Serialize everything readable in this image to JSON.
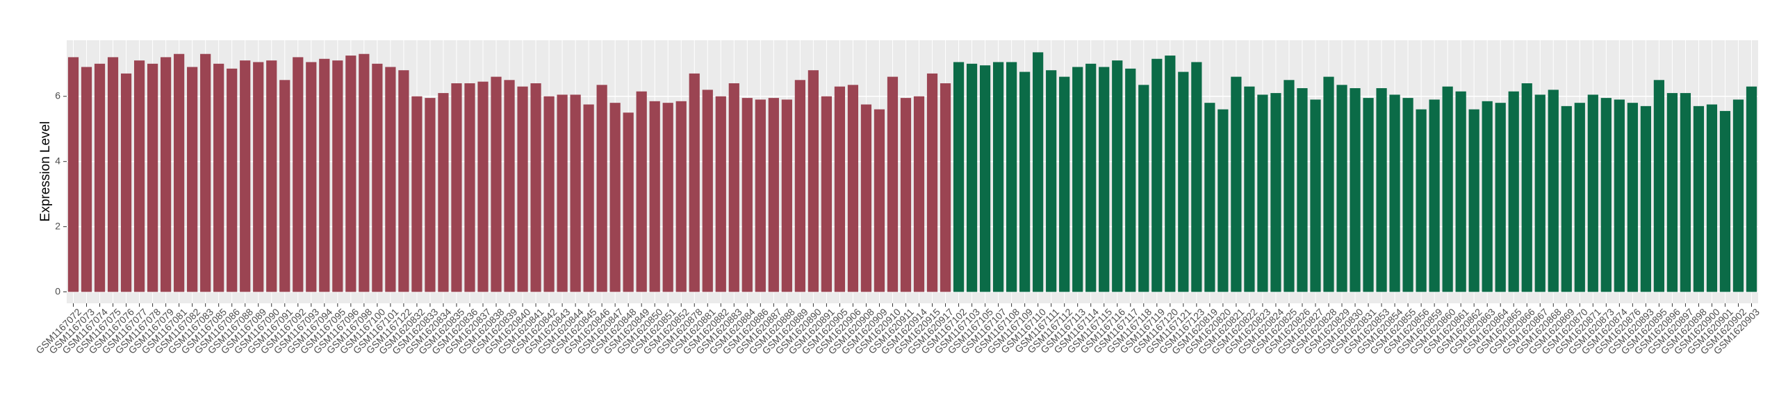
{
  "chart_data": {
    "type": "bar",
    "y_label": "Expression Level",
    "ylim": [
      -0.35,
      7.72
    ],
    "yticks": [
      0,
      2,
      4,
      6
    ],
    "grid": true,
    "series": [
      {
        "color": "#9b4452",
        "categories": [
          "GSM1167072",
          "GSM1167073",
          "GSM1167074",
          "GSM1167075",
          "GSM1167076",
          "GSM1167077",
          "GSM1167078",
          "GSM1167079",
          "GSM1167081",
          "GSM1167082",
          "GSM1167083",
          "GSM1167085",
          "GSM1167086",
          "GSM1167088",
          "GSM1167089",
          "GSM1167090",
          "GSM1167091",
          "GSM1167092",
          "GSM1167093",
          "GSM1167094",
          "GSM1167095",
          "GSM1167096",
          "GSM1167098",
          "GSM1167100",
          "GSM1167101",
          "GSM1167122",
          "GSM1620832",
          "GSM1620833",
          "GSM1620834",
          "GSM1620835",
          "GSM1620836",
          "GSM1620837",
          "GSM1620838",
          "GSM1620839",
          "GSM1620840",
          "GSM1620841",
          "GSM1620842",
          "GSM1620843",
          "GSM1620844",
          "GSM1620845",
          "GSM1620846",
          "GSM1620847",
          "GSM1620848",
          "GSM1620849",
          "GSM1620850",
          "GSM1620851",
          "GSM1620852",
          "GSM1620878",
          "GSM1620881",
          "GSM1620882",
          "GSM1620883",
          "GSM1620884",
          "GSM1620886",
          "GSM1620887",
          "GSM1620888",
          "GSM1620889",
          "GSM1620890",
          "GSM1620891",
          "GSM1620905",
          "GSM1620906",
          "GSM1620908",
          "GSM1620909",
          "GSM1620910",
          "GSM1620911",
          "GSM1620914",
          "GSM1620915",
          "GSM1620917"
        ],
        "values": [
          7.2,
          6.9,
          7.0,
          7.2,
          6.7,
          7.1,
          7.0,
          7.2,
          7.3,
          6.9,
          7.3,
          7.0,
          6.85,
          7.1,
          7.05,
          7.1,
          6.5,
          7.2,
          7.05,
          7.15,
          7.1,
          7.25,
          7.3,
          7.0,
          6.9,
          6.8,
          6.0,
          5.95,
          6.1,
          6.4,
          6.4,
          6.45,
          6.6,
          6.5,
          6.3,
          6.4,
          6.0,
          6.05,
          6.05,
          5.75,
          6.35,
          5.8,
          5.5,
          6.15,
          5.85,
          5.8,
          5.85,
          6.7,
          6.2,
          6.0,
          6.4,
          5.95,
          5.9,
          5.95,
          5.9,
          6.5,
          6.8,
          6.0,
          6.3,
          6.35,
          5.75,
          5.6,
          6.6,
          5.95,
          6.0,
          6.7,
          6.4
        ]
      },
      {
        "color": "#0b6b47",
        "categories": [
          "GSM1167102",
          "GSM1167103",
          "GSM1167105",
          "GSM1167107",
          "GSM1167108",
          "GSM1167109",
          "GSM1167110",
          "GSM1167111",
          "GSM1167112",
          "GSM1167113",
          "GSM1167114",
          "GSM1167115",
          "GSM1167116",
          "GSM1167117",
          "GSM1167118",
          "GSM1167119",
          "GSM1167120",
          "GSM1167121",
          "GSM1167123",
          "GSM1620819",
          "GSM1620820",
          "GSM1620821",
          "GSM1620822",
          "GSM1620823",
          "GSM1620824",
          "GSM1620825",
          "GSM1620826",
          "GSM1620827",
          "GSM1620828",
          "GSM1620829",
          "GSM1620830",
          "GSM1620831",
          "GSM1620853",
          "GSM1620854",
          "GSM1620855",
          "GSM1620856",
          "GSM1620859",
          "GSM1620860",
          "GSM1620861",
          "GSM1620862",
          "GSM1620863",
          "GSM1620864",
          "GSM1620865",
          "GSM1620866",
          "GSM1620867",
          "GSM1620868",
          "GSM1620869",
          "GSM1620870",
          "GSM1620871",
          "GSM1620873",
          "GSM1620874",
          "GSM1620876",
          "GSM1620893",
          "GSM1620895",
          "GSM1620896",
          "GSM1620897",
          "GSM1620898",
          "GSM1620900",
          "GSM1620901",
          "GSM1620902",
          "GSM1620903"
        ],
        "values": [
          7.05,
          7.0,
          6.95,
          7.05,
          7.05,
          6.75,
          7.35,
          6.8,
          6.6,
          6.9,
          7.0,
          6.9,
          7.1,
          6.85,
          6.35,
          7.15,
          7.25,
          6.75,
          7.05,
          5.8,
          5.6,
          6.6,
          6.3,
          6.05,
          6.1,
          6.5,
          6.25,
          5.9,
          6.6,
          6.35,
          6.25,
          5.95,
          6.25,
          6.05,
          5.95,
          5.6,
          5.9,
          6.3,
          6.15,
          5.6,
          5.85,
          5.8,
          6.15,
          6.4,
          6.05,
          6.2,
          5.7,
          5.8,
          6.05,
          5.95,
          5.9,
          5.8,
          5.7,
          6.5,
          6.1,
          6.1,
          5.7,
          5.75,
          5.55,
          5.9,
          6.3
        ]
      }
    ]
  }
}
